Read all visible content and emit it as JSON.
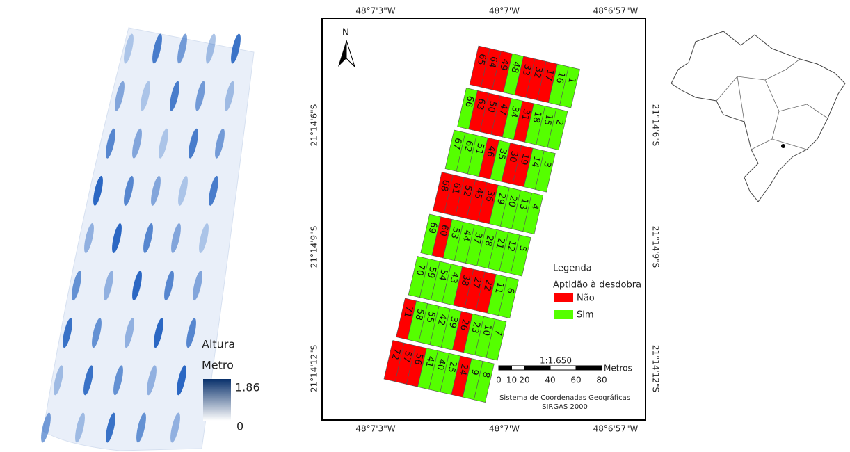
{
  "height_legend": {
    "title": "Altura",
    "unit": "Metro",
    "max": 1.86,
    "min": 0
  },
  "frame": {
    "longitude_labels": [
      "48°7'3\"W",
      "48°7'W",
      "48°6'57\"W"
    ],
    "latitude_labels": [
      "21°14'6\"S",
      "21°14'9\"S",
      "21°14'12\"S"
    ]
  },
  "north": "N",
  "plots": [
    [
      {
        "label": 65,
        "color": "#ff0000"
      },
      {
        "label": 64,
        "color": "#ff0000"
      },
      {
        "label": 49,
        "color": "#ff0000"
      },
      {
        "label": 48,
        "color": "#55ff00"
      },
      {
        "label": 33,
        "color": "#ff0000"
      },
      {
        "label": 32,
        "color": "#ff0000"
      },
      {
        "label": 17,
        "color": "#ff0000"
      },
      {
        "label": 16,
        "color": "#55ff00"
      },
      {
        "label": 1,
        "color": "#55ff00"
      }
    ],
    [
      {
        "label": 66,
        "color": "#55ff00"
      },
      {
        "label": 63,
        "color": "#ff0000"
      },
      {
        "label": 50,
        "color": "#ff0000"
      },
      {
        "label": 47,
        "color": "#ff0000"
      },
      {
        "label": 34,
        "color": "#55ff00"
      },
      {
        "label": 31,
        "color": "#ff0000"
      },
      {
        "label": 18,
        "color": "#55ff00"
      },
      {
        "label": 15,
        "color": "#55ff00"
      },
      {
        "label": 2,
        "color": "#55ff00"
      }
    ],
    [
      {
        "label": 67,
        "color": "#55ff00"
      },
      {
        "label": 62,
        "color": "#55ff00"
      },
      {
        "label": 51,
        "color": "#55ff00"
      },
      {
        "label": 46,
        "color": "#ff0000"
      },
      {
        "label": 35,
        "color": "#55ff00"
      },
      {
        "label": 30,
        "color": "#ff0000"
      },
      {
        "label": 19,
        "color": "#ff0000"
      },
      {
        "label": 14,
        "color": "#55ff00"
      },
      {
        "label": 3,
        "color": "#55ff00"
      }
    ],
    [
      {
        "label": 68,
        "color": "#ff0000"
      },
      {
        "label": 61,
        "color": "#ff0000"
      },
      {
        "label": 52,
        "color": "#ff0000"
      },
      {
        "label": 45,
        "color": "#ff0000"
      },
      {
        "label": 36,
        "color": "#ff0000"
      },
      {
        "label": 29,
        "color": "#55ff00"
      },
      {
        "label": 20,
        "color": "#55ff00"
      },
      {
        "label": 13,
        "color": "#55ff00"
      },
      {
        "label": 4,
        "color": "#55ff00"
      }
    ],
    [
      {
        "label": 69,
        "color": "#55ff00"
      },
      {
        "label": 60,
        "color": "#ff0000"
      },
      {
        "label": 53,
        "color": "#55ff00"
      },
      {
        "label": 44,
        "color": "#55ff00"
      },
      {
        "label": 37,
        "color": "#55ff00"
      },
      {
        "label": 28,
        "color": "#55ff00"
      },
      {
        "label": 21,
        "color": "#55ff00"
      },
      {
        "label": 12,
        "color": "#55ff00"
      },
      {
        "label": 5,
        "color": "#55ff00"
      }
    ],
    [
      {
        "label": 70,
        "color": "#55ff00"
      },
      {
        "label": 59,
        "color": "#55ff00"
      },
      {
        "label": 54,
        "color": "#55ff00"
      },
      {
        "label": 43,
        "color": "#55ff00"
      },
      {
        "label": 38,
        "color": "#ff0000"
      },
      {
        "label": 27,
        "color": "#ff0000"
      },
      {
        "label": 22,
        "color": "#ff0000"
      },
      {
        "label": 11,
        "color": "#55ff00"
      },
      {
        "label": 6,
        "color": "#55ff00"
      }
    ],
    [
      {
        "label": 71,
        "color": "#ff0000"
      },
      {
        "label": 58,
        "color": "#55ff00"
      },
      {
        "label": 55,
        "color": "#55ff00"
      },
      {
        "label": 42,
        "color": "#55ff00"
      },
      {
        "label": 39,
        "color": "#55ff00"
      },
      {
        "label": 26,
        "color": "#ff0000"
      },
      {
        "label": 23,
        "color": "#55ff00"
      },
      {
        "label": 10,
        "color": "#55ff00"
      },
      {
        "label": 7,
        "color": "#55ff00"
      }
    ],
    [
      {
        "label": 72,
        "color": "#ff0000"
      },
      {
        "label": 57,
        "color": "#ff0000"
      },
      {
        "label": 56,
        "color": "#ff0000"
      },
      {
        "label": 41,
        "color": "#55ff00"
      },
      {
        "label": 40,
        "color": "#55ff00"
      },
      {
        "label": 25,
        "color": "#55ff00"
      },
      {
        "label": 24,
        "color": "#ff0000"
      },
      {
        "label": 9,
        "color": "#55ff00"
      },
      {
        "label": 8,
        "color": "#55ff00"
      }
    ]
  ],
  "legend": {
    "title": "Legenda",
    "subtitle": "Aptidão à desdobra",
    "items": [
      {
        "label": "Não",
        "color": "#ff0000"
      },
      {
        "label": "Sim",
        "color": "#55ff00"
      }
    ]
  },
  "scale": {
    "ratio": "1:1.650",
    "unit": "Metros",
    "ticks": [
      0,
      10,
      20,
      40,
      60,
      80
    ]
  },
  "crs": [
    "Sistema de Coordenadas Geográficas",
    "SIRGAS 2000"
  ]
}
